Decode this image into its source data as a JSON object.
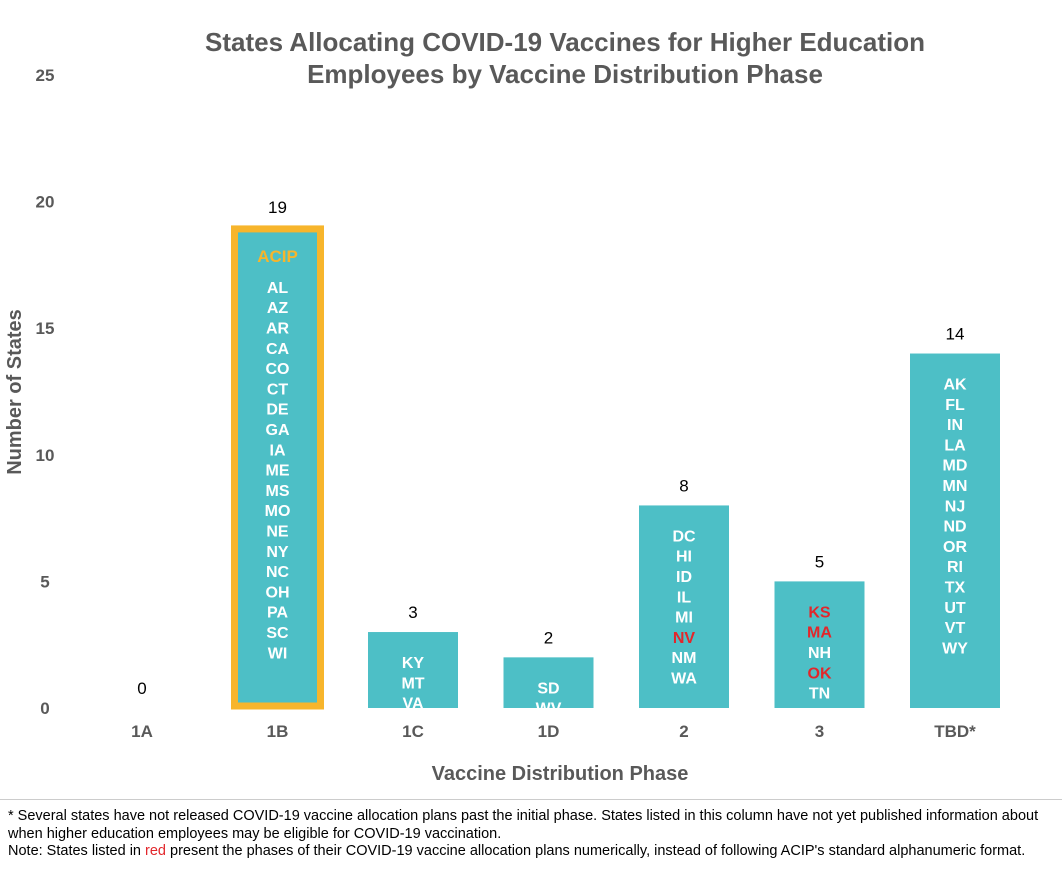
{
  "chart_data": {
    "type": "bar",
    "title": [
      "States Allocating COVID-19 Vaccines for Higher Education",
      "Employees by Vaccine Distribution Phase"
    ],
    "xlabel": "Vaccine Distribution Phase",
    "ylabel": "Number of States",
    "ylim": [
      0,
      25
    ],
    "yticks": [
      0,
      5,
      10,
      15,
      20,
      25
    ],
    "grid": false,
    "categories": [
      "1A",
      "1B",
      "1C",
      "1D",
      "2",
      "3",
      "TBD*"
    ],
    "values": [
      0,
      19,
      3,
      2,
      8,
      5,
      14
    ],
    "bar_color": "#4dbfc6",
    "highlight_color": "#f7b52c",
    "red_label_color": "#e2262b",
    "bar_contents": [
      {
        "header": null,
        "states": []
      },
      {
        "header": "ACIP",
        "highlight": true,
        "states": [
          "AL",
          "AZ",
          "AR",
          "CA",
          "CO",
          "CT",
          "DE",
          "GA",
          "IA",
          "ME",
          "MS",
          "MO",
          "NE",
          "NY",
          "NC",
          "OH",
          "PA",
          "SC",
          "WI"
        ]
      },
      {
        "header": null,
        "states": [
          "KY",
          "MT",
          "VA"
        ]
      },
      {
        "header": null,
        "states": [
          "SD",
          "WV"
        ]
      },
      {
        "header": null,
        "states": [
          "DC",
          "HI",
          "ID",
          "IL",
          "MI",
          "NV",
          "NM",
          "WA"
        ],
        "red": [
          "NV"
        ]
      },
      {
        "header": null,
        "states": [
          "KS",
          "MA",
          "NH",
          "OK",
          "TN"
        ],
        "red": [
          "KS",
          "MA",
          "OK"
        ]
      },
      {
        "header": null,
        "states": [
          "AK",
          "FL",
          "IN",
          "LA",
          "MD",
          "MN",
          "NJ",
          "ND",
          "OR",
          "RI",
          "TX",
          "UT",
          "VT",
          "WY"
        ]
      }
    ]
  },
  "footnotes": {
    "line1": "* Several states have not released COVID-19 vaccine allocation plans past the initial phase. States listed in this column have not yet published information about when higher education employees may be eligible for COVID-19 vaccination.",
    "line2_before": "Note: States listed in ",
    "line2_red": "red",
    "line2_after": " present the phases of their COVID-19 vaccine allocation plans numerically, instead of following ACIP's standard alphanumeric format."
  }
}
